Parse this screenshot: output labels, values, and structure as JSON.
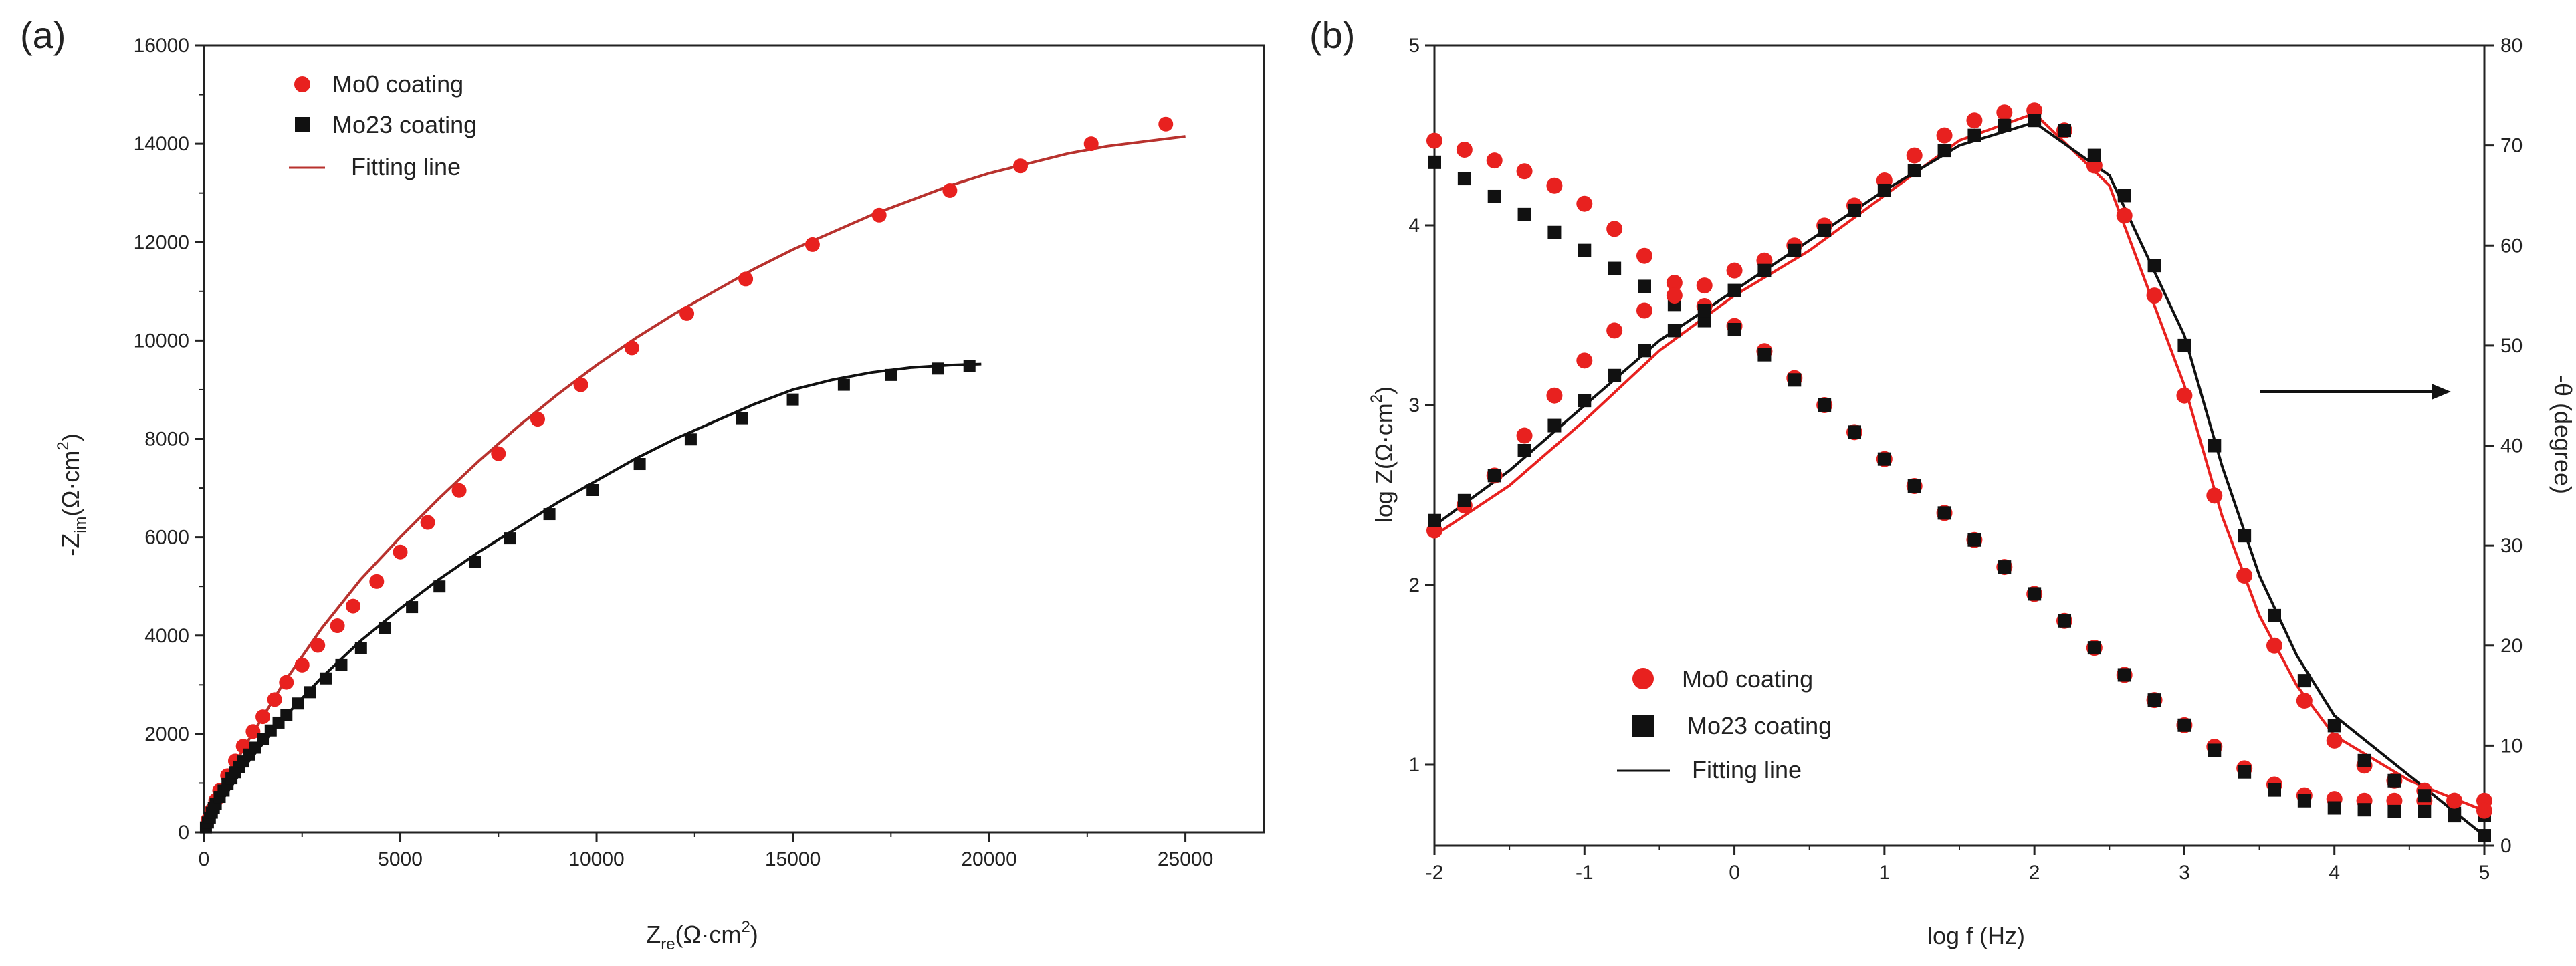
{
  "figure": {
    "panels": [
      {
        "panel_label": "(a)",
        "xlabel": {
          "main": "Z",
          "sub": "re",
          "tail": "(Ω·cm",
          "sup": "2",
          "close": ")"
        },
        "ylabel": {
          "main": "-Z",
          "sub": "im",
          "tail": "(Ω·cm",
          "sup": "2",
          "close": ")"
        },
        "legend": [
          "Mo0 coating",
          "Mo23 coating",
          "Fitting line"
        ]
      },
      {
        "panel_label": "(b)",
        "xlabel": {
          "text": "log f (Hz)"
        },
        "ylabel": {
          "main": "log Z(Ω·cm",
          "sup": "2",
          "close": ")"
        },
        "y2label": {
          "text": "-θ (degree)"
        },
        "legend": [
          "Mo0 coating",
          "Mo23 coating",
          "Fitting line"
        ]
      }
    ]
  },
  "colors": {
    "mo0": "#e8211f",
    "mo0_fit": "#b8322e",
    "mo23": "#111111",
    "axis": "#222222"
  },
  "chart_data": [
    {
      "type": "scatter",
      "xlim": [
        0,
        27000
      ],
      "ylim": [
        0,
        16000
      ],
      "xticks": [
        0,
        5000,
        10000,
        15000,
        20000,
        25000
      ],
      "yticks": [
        0,
        2000,
        4000,
        6000,
        8000,
        10000,
        12000,
        14000,
        16000
      ],
      "legend_position": "top-left",
      "series": [
        {
          "name": "Mo0 coating",
          "marker": "circle",
          "x": [
            100,
            200,
            300,
            400,
            600,
            800,
            1000,
            1250,
            1500,
            1800,
            2100,
            2500,
            2900,
            3400,
            3800,
            4400,
            5000,
            5700,
            6500,
            7500,
            8500,
            9600,
            10900,
            12300,
            13800,
            15500,
            17200,
            19000,
            20800,
            22600,
            24500
          ],
          "y": [
            250,
            450,
            650,
            850,
            1150,
            1450,
            1750,
            2050,
            2350,
            2700,
            3050,
            3400,
            3800,
            4200,
            4600,
            5100,
            5700,
            6300,
            6950,
            7700,
            8400,
            9100,
            9850,
            10550,
            11250,
            11950,
            12550,
            13050,
            13550,
            14000,
            14400
          ]
        },
        {
          "name": "Mo23 coating",
          "marker": "square",
          "x": [
            50,
            100,
            150,
            200,
            250,
            300,
            400,
            500,
            600,
            700,
            800,
            900,
            1000,
            1150,
            1300,
            1500,
            1700,
            1900,
            2100,
            2400,
            2700,
            3100,
            3500,
            4000,
            4600,
            5300,
            6000,
            6900,
            7800,
            8800,
            9900,
            11100,
            12400,
            13700,
            15000,
            16300,
            17500,
            18700,
            19500
          ],
          "y": [
            100,
            200,
            300,
            400,
            500,
            580,
            720,
            850,
            980,
            1100,
            1220,
            1330,
            1440,
            1580,
            1720,
            1900,
            2070,
            2230,
            2390,
            2620,
            2850,
            3130,
            3400,
            3750,
            4150,
            4580,
            5000,
            5500,
            5980,
            6470,
            6960,
            7490,
            7990,
            8420,
            8800,
            9100,
            9300,
            9430,
            9480
          ]
        },
        {
          "name": "Fitting line",
          "for": "Mo0 coating",
          "marker": "line",
          "x": [
            0,
            500,
            1000,
            2000,
            3000,
            4000,
            5000,
            6000,
            7000,
            8000,
            9000,
            10000,
            11000,
            12000,
            13000,
            14000,
            15000,
            16000,
            17000,
            18000,
            19000,
            20000,
            21000,
            22000,
            23000,
            24000,
            25000
          ],
          "y": [
            0,
            900,
            1700,
            3000,
            4150,
            5150,
            6000,
            6800,
            7550,
            8250,
            8900,
            9500,
            10050,
            10550,
            11000,
            11450,
            11850,
            12200,
            12550,
            12850,
            13150,
            13400,
            13600,
            13800,
            13950,
            14050,
            14150
          ]
        },
        {
          "name": "Fitting line",
          "for": "Mo23 coating",
          "marker": "line",
          "x": [
            0,
            500,
            1000,
            2000,
            3000,
            4000,
            5000,
            6000,
            7000,
            8000,
            9000,
            10000,
            11000,
            12000,
            13000,
            14000,
            15000,
            16000,
            17000,
            18000,
            19000,
            19800
          ],
          "y": [
            0,
            700,
            1300,
            2300,
            3150,
            3900,
            4550,
            5150,
            5700,
            6200,
            6700,
            7150,
            7600,
            8000,
            8350,
            8700,
            9000,
            9200,
            9350,
            9450,
            9500,
            9520
          ]
        }
      ]
    },
    {
      "type": "scatter",
      "xlim": [
        -2,
        5
      ],
      "ylim": [
        0.55,
        5
      ],
      "y2lim": [
        0,
        80
      ],
      "xticks": [
        -2,
        -1,
        0,
        1,
        2,
        3,
        4,
        5
      ],
      "yticks": [
        1,
        2,
        3,
        4,
        5
      ],
      "y2ticks": [
        0,
        10,
        20,
        30,
        40,
        50,
        60,
        70,
        80
      ],
      "legend_position": "bottom-left",
      "annotation": "arrow pointing right to the -θ axis near 45 degree",
      "series": [
        {
          "name": "Mo0 coating",
          "marker": "circle",
          "axis": "left",
          "quantity": "log Z",
          "x": [
            -2,
            -1.8,
            -1.6,
            -1.4,
            -1.2,
            -1,
            -0.8,
            -0.6,
            -0.4,
            -0.2,
            0,
            0.2,
            0.4,
            0.6,
            0.8,
            1,
            1.2,
            1.4,
            1.6,
            1.8,
            2,
            2.2,
            2.4,
            2.6,
            2.8,
            3,
            3.2,
            3.4,
            3.6,
            3.8,
            4,
            4.2,
            4.4,
            4.6,
            4.8,
            5
          ],
          "y": [
            4.47,
            4.42,
            4.36,
            4.3,
            4.22,
            4.12,
            3.98,
            3.83,
            3.68,
            3.55,
            3.44,
            3.3,
            3.15,
            3.0,
            2.85,
            2.7,
            2.55,
            2.4,
            2.25,
            2.1,
            1.95,
            1.8,
            1.65,
            1.5,
            1.36,
            1.22,
            1.1,
            0.98,
            0.89,
            0.83,
            0.81,
            0.8,
            0.8,
            0.8,
            0.8,
            0.8
          ]
        },
        {
          "name": "Mo23 coating",
          "marker": "square",
          "axis": "left",
          "quantity": "log Z",
          "x": [
            -2,
            -1.8,
            -1.6,
            -1.4,
            -1.2,
            -1,
            -0.8,
            -0.6,
            -0.4,
            -0.2,
            0,
            0.2,
            0.4,
            0.6,
            0.8,
            1,
            1.2,
            1.4,
            1.6,
            1.8,
            2,
            2.2,
            2.4,
            2.6,
            2.8,
            3,
            3.2,
            3.4,
            3.6,
            3.8,
            4,
            4.2,
            4.4,
            4.6,
            4.8,
            5
          ],
          "y": [
            4.35,
            4.26,
            4.16,
            4.06,
            3.96,
            3.86,
            3.76,
            3.66,
            3.56,
            3.47,
            3.42,
            3.28,
            3.14,
            3.0,
            2.85,
            2.7,
            2.55,
            2.4,
            2.25,
            2.1,
            1.95,
            1.8,
            1.65,
            1.5,
            1.36,
            1.22,
            1.08,
            0.96,
            0.86,
            0.8,
            0.76,
            0.75,
            0.74,
            0.74,
            0.73,
            0.72
          ]
        },
        {
          "name": "Mo0 coating",
          "marker": "circle",
          "axis": "right",
          "quantity": "-θ",
          "x": [
            -2,
            -1.8,
            -1.6,
            -1.4,
            -1.2,
            -1,
            -0.8,
            -0.6,
            -0.4,
            -0.2,
            0,
            0.2,
            0.4,
            0.6,
            0.8,
            1,
            1.2,
            1.4,
            1.6,
            1.8,
            2,
            2.2,
            2.4,
            2.6,
            2.8,
            3,
            3.2,
            3.4,
            3.6,
            3.8,
            4,
            4.2,
            4.4,
            4.6,
            4.8,
            5
          ],
          "y": [
            31.5,
            34,
            37,
            41,
            45,
            48.5,
            51.5,
            53.5,
            55,
            56,
            57.5,
            58.5,
            60,
            62,
            64,
            66.5,
            69,
            71,
            72.5,
            73.3,
            73.5,
            71.5,
            68,
            63,
            55,
            45,
            35,
            27,
            20,
            14.5,
            10.5,
            8,
            6.5,
            5.5,
            4.5,
            3.5
          ]
        },
        {
          "name": "Mo23 coating",
          "marker": "square",
          "axis": "right",
          "quantity": "-θ",
          "x": [
            -2,
            -1.8,
            -1.6,
            -1.4,
            -1.2,
            -1,
            -0.8,
            -0.6,
            -0.4,
            -0.2,
            0,
            0.2,
            0.4,
            0.6,
            0.8,
            1,
            1.2,
            1.4,
            1.6,
            1.8,
            2,
            2.2,
            2.4,
            2.6,
            2.8,
            3,
            3.2,
            3.4,
            3.6,
            3.8,
            4,
            4.2,
            4.4,
            4.6,
            4.8,
            5
          ],
          "y": [
            32.5,
            34.5,
            37,
            39.5,
            42,
            44.5,
            47,
            49.5,
            51.5,
            53.5,
            55.5,
            57.5,
            59.5,
            61.5,
            63.5,
            65.5,
            67.5,
            69.5,
            71,
            72,
            72.5,
            71.5,
            69,
            65,
            58,
            50,
            40,
            31,
            23,
            16.5,
            12,
            8.5,
            6.5,
            5,
            3,
            1
          ]
        },
        {
          "name": "Fitting line",
          "for": "Mo0 coating",
          "marker": "line",
          "axis": "right",
          "x": [
            -2,
            -1.5,
            -1,
            -0.5,
            0,
            0.5,
            1,
            1.5,
            2,
            2.5,
            3,
            3.25,
            3.5,
            3.75,
            4,
            4.5,
            5
          ],
          "y": [
            31,
            36,
            42.5,
            49.5,
            55,
            59.5,
            65,
            70.5,
            73.2,
            66,
            46,
            33,
            23,
            16,
            11,
            6.5,
            3.5
          ]
        },
        {
          "name": "Fitting line",
          "for": "Mo23 coating",
          "marker": "line",
          "axis": "right",
          "x": [
            -2,
            -1.5,
            -1,
            -0.5,
            0,
            0.5,
            1,
            1.5,
            2,
            2.5,
            3,
            3.25,
            3.5,
            3.75,
            4,
            4.5,
            5
          ],
          "y": [
            32,
            37.5,
            44,
            50.5,
            55.5,
            60.5,
            65.5,
            70,
            72.3,
            67,
            51,
            38,
            27,
            19,
            13,
            7,
            1
          ]
        }
      ]
    }
  ]
}
